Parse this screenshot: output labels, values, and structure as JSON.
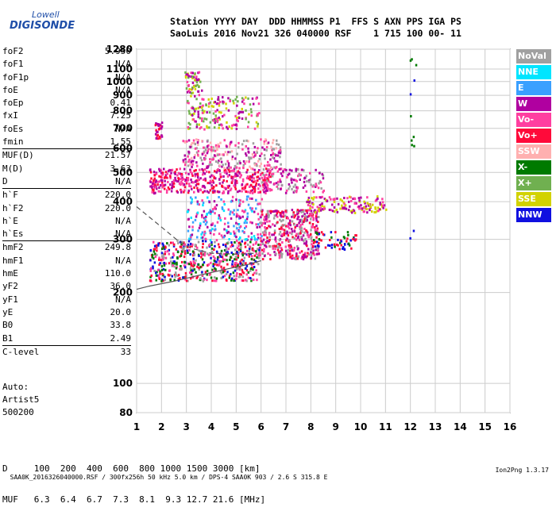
{
  "logo": {
    "line1": "Lowell",
    "line2": "DIGISONDE"
  },
  "header": {
    "line1": "Station YYYY DAY  DDD HHMMSS P1  FFS S AXN PPS IGA PS",
    "line2": "SaoLuis 2016 Nov21 326 040000 RSF    1 715 100 00- 11"
  },
  "params": [
    {
      "name": "foF2",
      "value": "5.950"
    },
    {
      "name": "foF1",
      "value": "N/A"
    },
    {
      "name": "foF1p",
      "value": "N/A"
    },
    {
      "name": "foE",
      "value": "N/A"
    },
    {
      "name": "foEp",
      "value": "0.41"
    },
    {
      "name": "fxI",
      "value": "7.25"
    },
    {
      "name": "foEs",
      "value": "N/A"
    },
    {
      "name": "fmin",
      "value": "1.55"
    },
    {
      "name": "MUF(D)",
      "value": "21.57",
      "sep": true
    },
    {
      "name": "M(D)",
      "value": "3.63"
    },
    {
      "name": "D",
      "value": "N/A"
    },
    {
      "name": "h`F",
      "value": "220.0",
      "sep": true
    },
    {
      "name": "h`F2",
      "value": "220.0"
    },
    {
      "name": "h`E",
      "value": "N/A"
    },
    {
      "name": "h`Es",
      "value": "N/A"
    },
    {
      "name": "hmF2",
      "value": "249.8",
      "sep": true
    },
    {
      "name": "hmF1",
      "value": "N/A"
    },
    {
      "name": "hmE",
      "value": "110.0"
    },
    {
      "name": "yF2",
      "value": "36.0"
    },
    {
      "name": "yF1",
      "value": "N/A"
    },
    {
      "name": "yE",
      "value": "20.0"
    },
    {
      "name": "B0",
      "value": "33.8"
    },
    {
      "name": "B1",
      "value": "2.49"
    },
    {
      "name": "C-level",
      "value": "33",
      "sep": true
    }
  ],
  "auto": {
    "line1": "Auto:",
    "line2": "Artist5",
    "line3": "500200"
  },
  "legend": [
    {
      "label": "NoVal",
      "color": "#a0a0a0"
    },
    {
      "label": "NNE",
      "color": "#00e5ff"
    },
    {
      "label": "E",
      "color": "#3aa0ff"
    },
    {
      "label": "W",
      "color": "#b000a0"
    },
    {
      "label": "Vo-",
      "color": "#ff3fa0"
    },
    {
      "label": "Vo+",
      "color": "#ff0a3a"
    },
    {
      "label": "SSW",
      "color": "#ffb0b0"
    },
    {
      "label": "X-",
      "color": "#007a00"
    },
    {
      "label": "X+",
      "color": "#70b050"
    },
    {
      "label": "SSE",
      "color": "#d2d200"
    },
    {
      "label": "NNW",
      "color": "#1010e0"
    }
  ],
  "bottom": {
    "d_row": "D     100  200  400  600  800 1000 1500 3000 [km]",
    "muf_row": "MUF   6.3  6.4  6.7  7.3  8.1  9.3 12.7 21.6 [MHz]"
  },
  "footer": {
    "left": "SAA0K_2016326040000.RSF / 300fx256h 50 kHz 5.0 km / DPS-4 SAA0K 903 / 2.6 S 315.8 E",
    "right": "Ion2Png 1.3.17"
  },
  "chart_data": {
    "type": "scatter",
    "title": "",
    "xlabel": "",
    "ylabel": "",
    "xlim": [
      1,
      16
    ],
    "ylim": [
      80,
      1280
    ],
    "y_scale": "log",
    "x_ticks": [
      1,
      2,
      3,
      4,
      5,
      6,
      7,
      8,
      9,
      10,
      11,
      12,
      13,
      14,
      15,
      16
    ],
    "y_ticks": [
      80,
      100,
      200,
      300,
      400,
      500,
      600,
      700,
      800,
      900,
      1000,
      1100,
      1280
    ],
    "clusters": [
      {
        "x": [
          1.5,
          5.9
        ],
        "y": [
          220,
          300
        ],
        "colors": [
          "#ff0a3a",
          "#1010e0",
          "#ff3fa0",
          "#a0a0a0",
          "#007a00"
        ],
        "density": 560
      },
      {
        "x": [
          5.9,
          8.3
        ],
        "y": [
          260,
          380
        ],
        "colors": [
          "#ff0a3a",
          "#ff3fa0",
          "#b000a0",
          "#a0a0a0"
        ],
        "density": 420
      },
      {
        "x": [
          7.8,
          11.0
        ],
        "y": [
          370,
          420
        ],
        "colors": [
          "#d2d200",
          "#ff3fa0",
          "#b000a0"
        ],
        "density": 150
      },
      {
        "x": [
          8.0,
          9.8
        ],
        "y": [
          280,
          320
        ],
        "colors": [
          "#1010e0",
          "#007a00",
          "#ff0a3a"
        ],
        "density": 60
      },
      {
        "x": [
          3.0,
          6.0
        ],
        "y": [
          300,
          420
        ],
        "colors": [
          "#3aa0ff",
          "#00e5ff",
          "#b000a0",
          "#ff3fa0"
        ],
        "density": 220
      },
      {
        "x": [
          1.5,
          6.4
        ],
        "y": [
          430,
          520
        ],
        "colors": [
          "#ff0a3a",
          "#b000a0",
          "#ff3fa0"
        ],
        "density": 420
      },
      {
        "x": [
          6.0,
          8.5
        ],
        "y": [
          430,
          520
        ],
        "colors": [
          "#ff3fa0",
          "#a0a0a0",
          "#b000a0"
        ],
        "density": 120
      },
      {
        "x": [
          2.8,
          6.8
        ],
        "y": [
          520,
          650
        ],
        "colors": [
          "#ff3fa0",
          "#b000a0",
          "#ffb0b0",
          "#a0a0a0"
        ],
        "density": 260
      },
      {
        "x": [
          1.7,
          2.0
        ],
        "y": [
          650,
          740
        ],
        "colors": [
          "#ff0a3a",
          "#b000a0"
        ],
        "density": 30
      },
      {
        "x": [
          3.0,
          5.9
        ],
        "y": [
          700,
          900
        ],
        "colors": [
          "#b000a0",
          "#ff3fa0",
          "#70b050",
          "#d2d200"
        ],
        "density": 170
      },
      {
        "x": [
          2.9,
          3.6
        ],
        "y": [
          900,
          1090
        ],
        "colors": [
          "#ff3fa0",
          "#b000a0",
          "#70b050",
          "#d2d200"
        ],
        "density": 60
      },
      {
        "x": [
          11.9,
          12.2
        ],
        "y": [
          300,
          1260
        ],
        "colors": [
          "#00e5ff",
          "#007a00",
          "#1010e0"
        ],
        "density": 12
      }
    ],
    "lines": [
      {
        "name": "",
        "x": [
          1.0,
          1.5,
          2.5,
          3.5,
          4.5,
          5.5,
          6.0
        ],
        "y": [
          205,
          210,
          218,
          228,
          238,
          248,
          255
        ],
        "color": "#555555"
      },
      {
        "name": "",
        "x": [
          1.0,
          1.8,
          2.6,
          3.2,
          4.0,
          5.0,
          5.8
        ],
        "y": [
          385,
          340,
          300,
          280,
          270,
          268,
          270
        ],
        "color": "#555555",
        "dashed": true
      }
    ]
  }
}
